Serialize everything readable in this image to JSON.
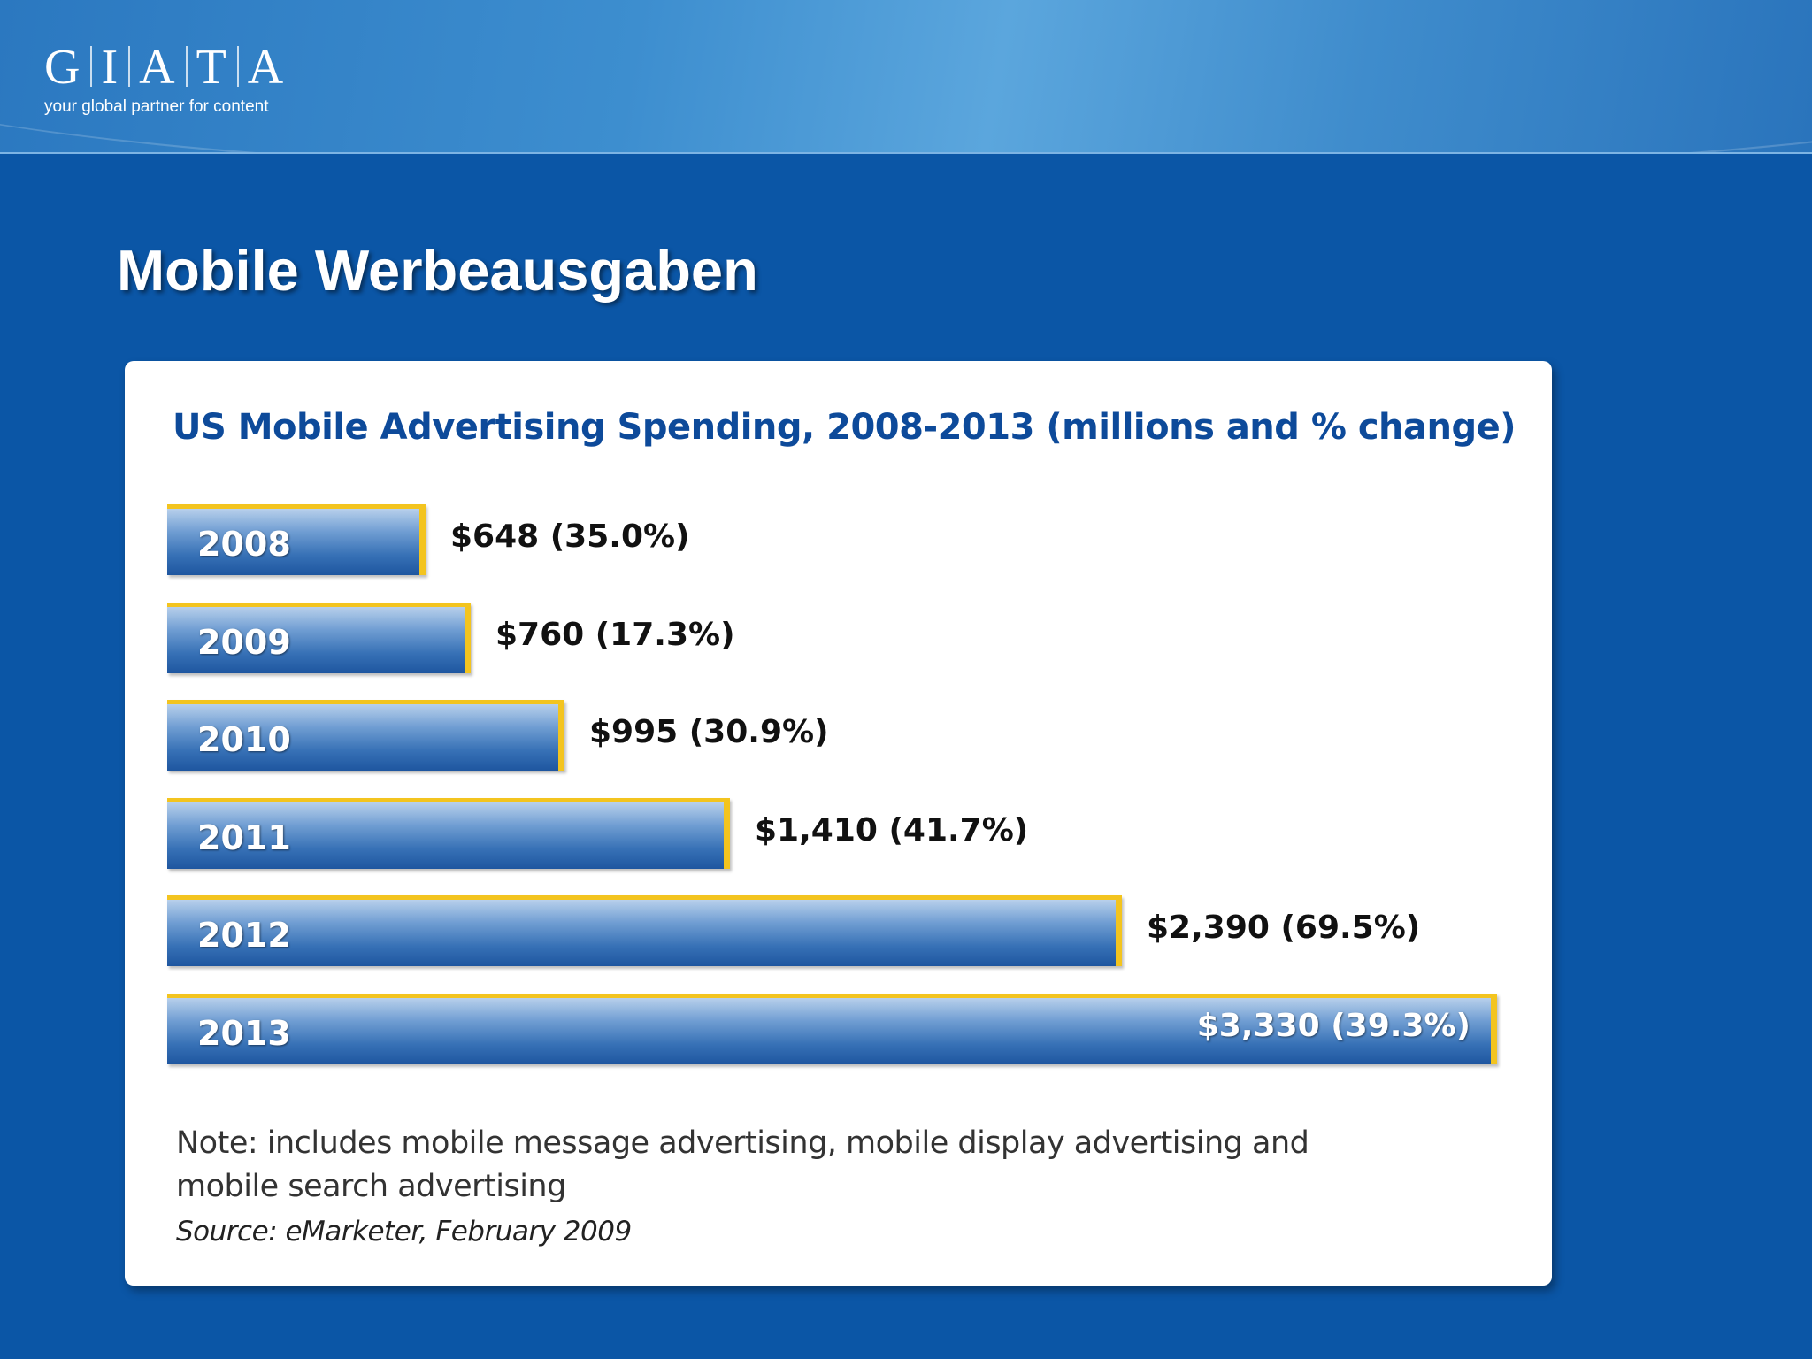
{
  "brand": {
    "logo_text": "G|I|A|T|A",
    "tagline": "your global partner for content"
  },
  "page": {
    "title": "Mobile Werbeausgaben"
  },
  "note": "Note: includes mobile message advertising, mobile display advertising and mobile search advertising",
  "source": "Source: eMarketer, February 2009",
  "colors": {
    "background": "#0b56a6",
    "bar_fill": "#3771b6",
    "bar_accent": "#f3c41f",
    "chart_title": "#0d4a9a"
  },
  "chart_data": {
    "type": "bar",
    "orientation": "horizontal",
    "title": "US Mobile Advertising Spending, 2008-2013 (millions and % change)",
    "xlabel": "",
    "ylabel": "",
    "categories": [
      "2008",
      "2009",
      "2010",
      "2011",
      "2012",
      "2013"
    ],
    "values": [
      648,
      760,
      995,
      1410,
      2390,
      3330
    ],
    "pct_change": [
      "35.0%",
      "17.3%",
      "30.9%",
      "41.7%",
      "69.5%",
      "39.3%"
    ],
    "labels": [
      "$648 (35.0%)",
      "$760 (17.3%)",
      "$995 (30.9%)",
      "$1,410 (41.7%)",
      "$2,390 (69.5%)",
      "$3,330 (39.3%)"
    ],
    "grid": false,
    "legend": "none"
  }
}
